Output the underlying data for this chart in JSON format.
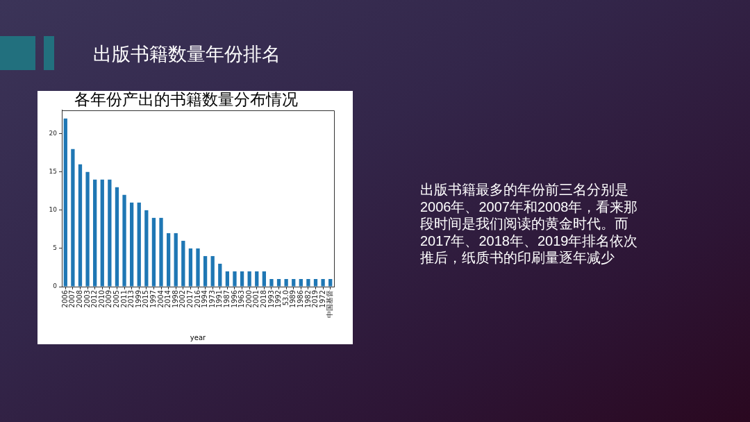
{
  "chart_data": {
    "type": "bar",
    "title": "各年份产出的书籍数量分布情况",
    "xlabel": "year",
    "categories": [
      "2006",
      "2007",
      "2008",
      "2003",
      "2012",
      "2010",
      "2009",
      "2005",
      "2011",
      "2013",
      "1999",
      "2015",
      "1997",
      "2004",
      "2014",
      "1998",
      "2002",
      "2017",
      "2016",
      "1994",
      "1973",
      "1991",
      "1987",
      "1996",
      "1963",
      "2000",
      "2001",
      "2018",
      "1993",
      "1992",
      "53.0",
      "1989",
      "1986",
      "1982",
      "2019",
      "1972",
      "中国基督"
    ],
    "values": [
      22,
      18,
      16,
      15,
      14,
      14,
      14,
      13,
      12,
      11,
      11,
      10,
      9,
      9,
      7,
      7,
      6,
      5,
      5,
      4,
      4,
      3,
      2,
      2,
      2,
      2,
      2,
      2,
      1,
      1,
      1,
      1,
      1,
      1,
      1,
      1,
      1
    ],
    "color": "#1f77b4",
    "ylim": [
      0,
      23.1
    ],
    "yticks": [
      0,
      5,
      10,
      15,
      20
    ],
    "annotations": [
      "出版书籍数量年份排名",
      "出版书籍最多的年份前三名分别是2006年、2007年和2008年，看来那段时间是我们阅读的黄金时代。而2017年、2018年、2019年排名依次推后，纸质书的印刷量逐年减少"
    ]
  }
}
